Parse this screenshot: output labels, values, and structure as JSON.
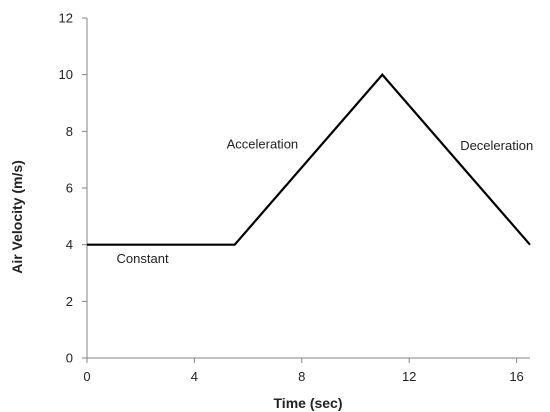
{
  "chart_data": {
    "type": "line",
    "title": "",
    "xlabel": "Time (sec)",
    "ylabel": "Air Velocity (m/s)",
    "xlim": [
      0,
      16.5
    ],
    "ylim": [
      0,
      12
    ],
    "x_ticks": [
      0,
      4,
      8,
      12,
      16
    ],
    "y_ticks": [
      0,
      2,
      4,
      6,
      8,
      10,
      12
    ],
    "grid": false,
    "series": [
      {
        "x": [
          0,
          5.5,
          11,
          16.5
        ],
        "y": [
          4,
          4,
          10,
          4
        ]
      }
    ],
    "annotations": [
      {
        "text": "Constant",
        "x": 1.1,
        "y": 3.35
      },
      {
        "text": "Acceleration",
        "x": 5.2,
        "y": 7.4
      },
      {
        "text": "Deceleration",
        "x": 13.9,
        "y": 7.35
      }
    ],
    "colors": {
      "line": "#000000",
      "axis": "#868686",
      "text": "#222222"
    }
  }
}
